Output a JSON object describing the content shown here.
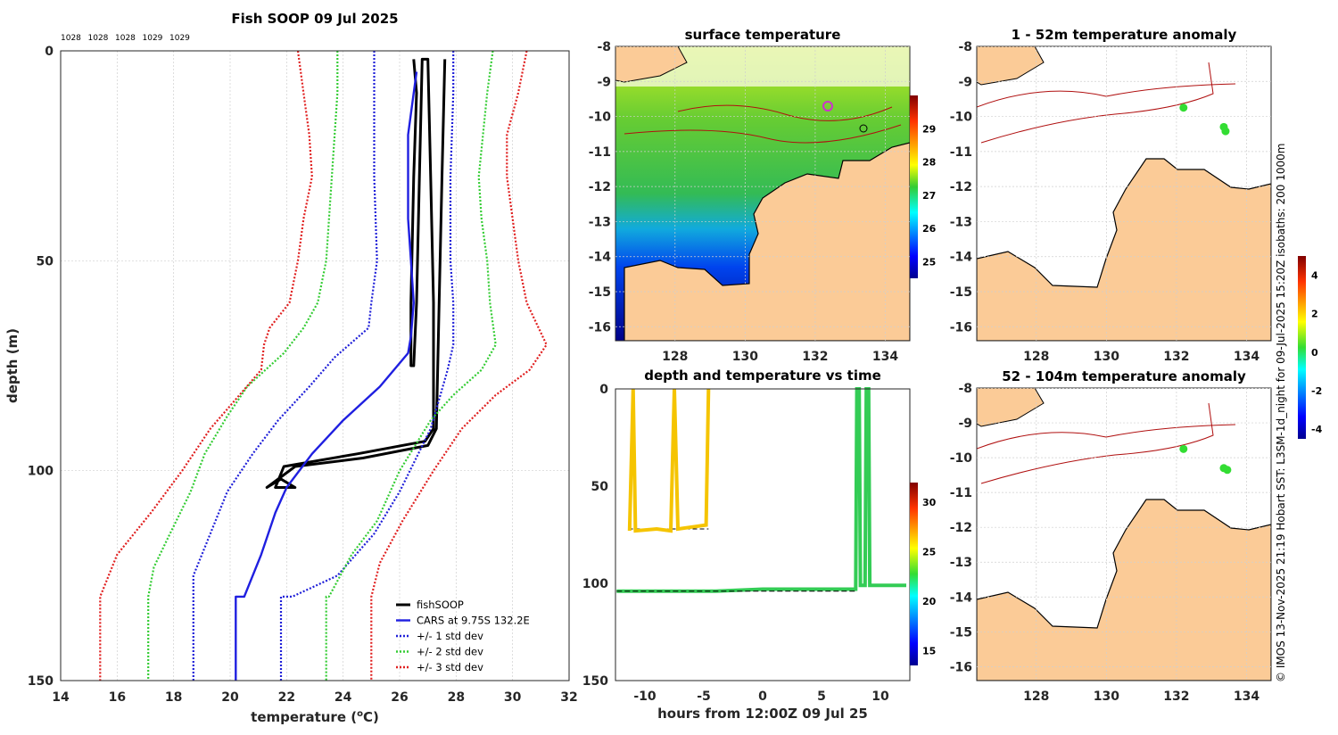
{
  "colors": {
    "fishsoop": "#000000",
    "cars": "#1f1fe0",
    "std1": "#1f1fd8",
    "std2": "#33cc33",
    "std3": "#e01f1f",
    "land": "#fbcb97",
    "isobath": "#b01010",
    "water_anom": "#ffffff",
    "anom_dot": "#33dd33"
  },
  "chart_data": [
    {
      "type": "line",
      "title": "Fish SOOP 09 Jul 2025",
      "xlabel": "temperature (",
      "xlabel_sup": "o",
      "xlabel_unit": "C)",
      "ylabel": "depth (m)",
      "xlim": [
        14,
        32
      ],
      "ylim": [
        150,
        0
      ],
      "xticks": [
        14,
        16,
        18,
        20,
        22,
        24,
        26,
        28,
        30,
        32
      ],
      "yticks": [
        0,
        50,
        100,
        150
      ],
      "density_labels": [
        "1028",
        "1028",
        "1028",
        "1029",
        "1029"
      ],
      "legend": [
        "fishSOOP",
        "CARS at 9.75S 132.2E",
        "+/- 1 std dev",
        "+/- 2 std dev",
        "+/- 3 std dev"
      ],
      "series": [
        {
          "name": "fishSOOP",
          "style": "solid",
          "color": "#000000",
          "points": [
            [
              26.5,
              2
            ],
            [
              26.6,
              10
            ],
            [
              26.5,
              30
            ],
            [
              26.4,
              60
            ],
            [
              26.4,
              75
            ],
            [
              26.5,
              75
            ],
            [
              26.6,
              60
            ],
            [
              26.7,
              30
            ],
            [
              26.8,
              2
            ],
            [
              27.0,
              2
            ],
            [
              27.1,
              30
            ],
            [
              27.2,
              60
            ],
            [
              27.2,
              90
            ],
            [
              26.9,
              93
            ],
            [
              24.5,
              96
            ],
            [
              21.9,
              99
            ],
            [
              21.6,
              104
            ],
            [
              22.3,
              104
            ],
            [
              21.8,
              102
            ],
            [
              21.3,
              104
            ],
            [
              22.3,
              99
            ],
            [
              24.7,
              97
            ],
            [
              27.0,
              94
            ],
            [
              27.3,
              90
            ],
            [
              27.4,
              60
            ],
            [
              27.5,
              30
            ],
            [
              27.6,
              2
            ]
          ]
        },
        {
          "name": "CARS at 9.75S 132.2E",
          "style": "solid",
          "color": "#1f1fe0",
          "points": [
            [
              26.6,
              5
            ],
            [
              26.3,
              20
            ],
            [
              26.3,
              40
            ],
            [
              26.4,
              50
            ],
            [
              26.5,
              60
            ],
            [
              26.4,
              68
            ],
            [
              26.3,
              72
            ],
            [
              25.3,
              80
            ],
            [
              24.0,
              88
            ],
            [
              22.9,
              96
            ],
            [
              22.0,
              104
            ],
            [
              21.6,
              110
            ],
            [
              21.1,
              120
            ],
            [
              20.5,
              130
            ],
            [
              20.2,
              130
            ],
            [
              20.2,
              150
            ]
          ]
        },
        {
          "name": "+1 std",
          "style": "dotted",
          "color": "#1f1fd8",
          "points": [
            [
              27.9,
              0
            ],
            [
              27.9,
              10
            ],
            [
              27.8,
              30
            ],
            [
              27.8,
              50
            ],
            [
              27.9,
              60
            ],
            [
              27.9,
              70
            ],
            [
              27.7,
              76
            ],
            [
              27.1,
              90
            ],
            [
              26.0,
              105
            ],
            [
              25.1,
              115
            ],
            [
              23.8,
              125
            ],
            [
              22.2,
              130
            ],
            [
              21.8,
              130
            ],
            [
              21.8,
              150
            ]
          ]
        },
        {
          "name": "-1 std",
          "style": "dotted",
          "color": "#1f1fd8",
          "points": [
            [
              25.1,
              0
            ],
            [
              25.1,
              10
            ],
            [
              25.1,
              30
            ],
            [
              25.2,
              50
            ],
            [
              25.0,
              60
            ],
            [
              24.9,
              66
            ],
            [
              23.7,
              73
            ],
            [
              22.8,
              80
            ],
            [
              21.7,
              88
            ],
            [
              20.8,
              96
            ],
            [
              19.9,
              105
            ],
            [
              19.3,
              115
            ],
            [
              18.7,
              125
            ],
            [
              18.7,
              130
            ],
            [
              18.7,
              150
            ]
          ]
        },
        {
          "name": "+2 std",
          "style": "dotted",
          "color": "#33cc33",
          "points": [
            [
              29.3,
              0
            ],
            [
              29.1,
              10
            ],
            [
              28.8,
              30
            ],
            [
              28.9,
              40
            ],
            [
              29.1,
              50
            ],
            [
              29.2,
              60
            ],
            [
              29.4,
              70
            ],
            [
              28.9,
              76
            ],
            [
              27.9,
              82
            ],
            [
              27.1,
              88
            ],
            [
              26.0,
              100
            ],
            [
              25.2,
              112
            ],
            [
              24.3,
              120
            ],
            [
              23.5,
              130
            ],
            [
              23.4,
              130
            ],
            [
              23.4,
              150
            ]
          ]
        },
        {
          "name": "-2 std",
          "style": "dotted",
          "color": "#33cc33",
          "points": [
            [
              23.8,
              0
            ],
            [
              23.8,
              10
            ],
            [
              23.6,
              30
            ],
            [
              23.4,
              50
            ],
            [
              23.1,
              60
            ],
            [
              22.6,
              66
            ],
            [
              21.9,
              72
            ],
            [
              20.6,
              80
            ],
            [
              19.9,
              87
            ],
            [
              19.1,
              96
            ],
            [
              18.6,
              105
            ],
            [
              17.8,
              116
            ],
            [
              17.3,
              123
            ],
            [
              17.1,
              130
            ],
            [
              17.1,
              150
            ]
          ]
        },
        {
          "name": "+3 std",
          "style": "dotted",
          "color": "#e01f1f",
          "points": [
            [
              30.5,
              0
            ],
            [
              30.2,
              10
            ],
            [
              29.8,
              20
            ],
            [
              29.8,
              30
            ],
            [
              30.0,
              40
            ],
            [
              30.2,
              50
            ],
            [
              30.5,
              60
            ],
            [
              31.2,
              70
            ],
            [
              30.6,
              76
            ],
            [
              29.4,
              82
            ],
            [
              28.2,
              90
            ],
            [
              27.2,
              100
            ],
            [
              26.1,
              112
            ],
            [
              25.3,
              122
            ],
            [
              25.0,
              130
            ],
            [
              25.0,
              150
            ]
          ]
        },
        {
          "name": "-3 std",
          "style": "dotted",
          "color": "#e01f1f",
          "points": [
            [
              22.4,
              0
            ],
            [
              22.6,
              10
            ],
            [
              22.8,
              20
            ],
            [
              22.9,
              30
            ],
            [
              22.6,
              40
            ],
            [
              22.4,
              50
            ],
            [
              22.1,
              60
            ],
            [
              21.4,
              66
            ],
            [
              21.2,
              70
            ],
            [
              21.1,
              76
            ],
            [
              20.2,
              83
            ],
            [
              19.3,
              90
            ],
            [
              18.3,
              100
            ],
            [
              17.2,
              110
            ],
            [
              16.0,
              120
            ],
            [
              15.4,
              130
            ],
            [
              15.4,
              150
            ]
          ]
        }
      ]
    },
    {
      "type": "heatmap",
      "title": "surface temperature",
      "xticks": [
        128,
        130,
        132,
        134
      ],
      "yticks": [
        -8,
        -9,
        -10,
        -11,
        -12,
        -13,
        -14,
        -15,
        -16
      ],
      "xlim": [
        126.3,
        134.7
      ],
      "ylim": [
        -16.4,
        -8
      ],
      "colorbar_ticks": [
        25,
        26,
        27,
        28,
        29
      ],
      "colorbar_range": [
        24.5,
        30
      ]
    },
    {
      "type": "scatter",
      "title": "depth and temperature vs time",
      "xlabel": "hours from 12:00Z 09 Jul 25",
      "xticks": [
        -10,
        -5,
        0,
        5,
        10
      ],
      "yticks": [
        0,
        50,
        100,
        150
      ],
      "xlim": [
        -12.5,
        12.5
      ],
      "ylim": [
        150,
        0
      ],
      "colorbar_ticks": [
        15,
        20,
        25,
        30
      ],
      "colorbar_range": [
        13.5,
        32
      ]
    },
    {
      "type": "heatmap",
      "title": "1 - 52m temperature anomaly",
      "xticks": [
        128,
        130,
        132,
        134
      ],
      "yticks": [
        -8,
        -9,
        -10,
        -11,
        -12,
        -13,
        -14,
        -15,
        -16
      ],
      "xlim": [
        126.3,
        134.7
      ],
      "ylim": [
        -16.4,
        -8
      ],
      "anomaly_points": [
        [
          132.2,
          -9.75,
          0.3
        ],
        [
          133.35,
          -10.3,
          0.3
        ],
        [
          133.4,
          -10.42,
          0.3
        ]
      ]
    },
    {
      "type": "heatmap",
      "title": "52 - 104m temperature anomaly",
      "xticks": [
        128,
        130,
        132,
        134
      ],
      "yticks": [
        -8,
        -9,
        -10,
        -11,
        -12,
        -13,
        -14,
        -15,
        -16
      ],
      "xlim": [
        126.3,
        134.7
      ],
      "ylim": [
        -16.4,
        -8
      ],
      "anomaly_points": [
        [
          132.2,
          -9.75,
          0.3
        ],
        [
          133.35,
          -10.3,
          0.3
        ],
        [
          133.45,
          -10.35,
          0.3
        ]
      ]
    }
  ],
  "anomaly_colorbar": {
    "ticks": [
      4,
      2,
      0,
      -2,
      -4
    ],
    "range": [
      -4.5,
      5
    ]
  },
  "credit": "© IMOS 13-Nov-2025 21:19 Hobart SST: L3SM-1d_night for 09-Jul-2025 15:20Z isobaths: 200  1000m"
}
